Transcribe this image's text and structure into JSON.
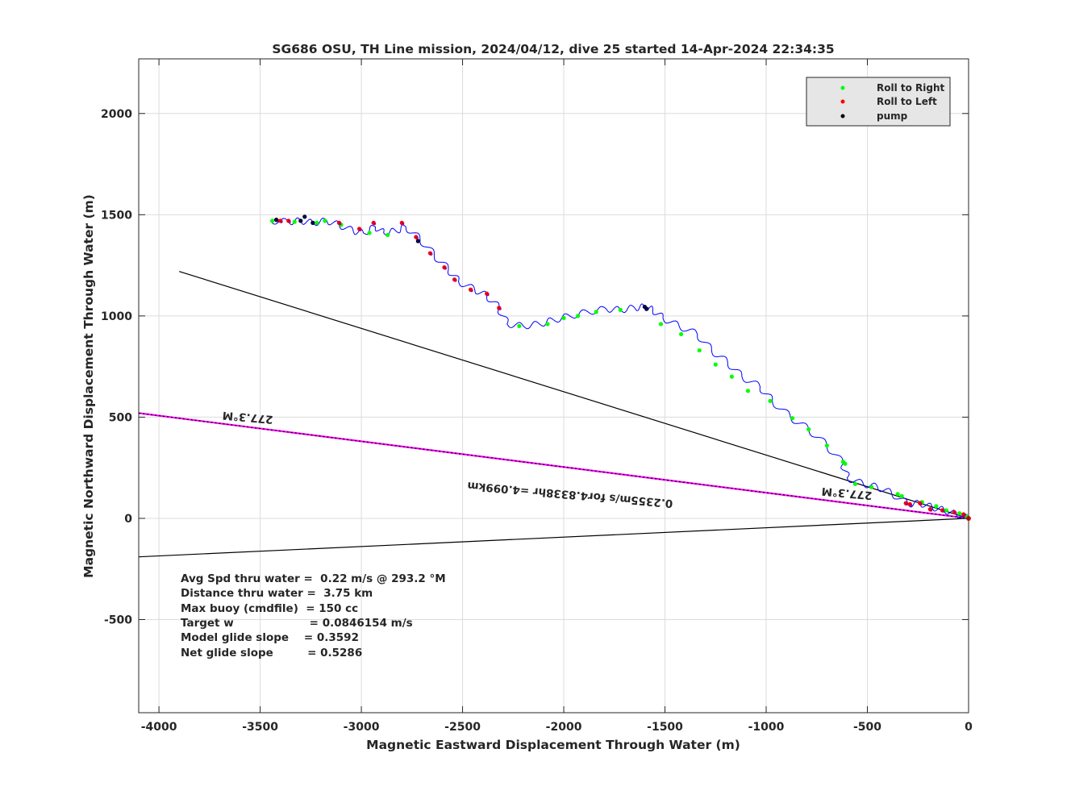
{
  "chart_data": {
    "type": "line",
    "title": "SG686 OSU, TH Line mission, 2024/04/12, dive 25 started 14-Apr-2024 22:34:35",
    "xlabel": "Magnetic Eastward Displacement Through Water (m)",
    "ylabel": "Magnetic Northward Displacement Through Water (m)",
    "xlim": [
      -4100,
      0
    ],
    "ylim": [
      -960,
      2270
    ],
    "xticks": [
      -4000,
      -3500,
      -3000,
      -2500,
      -2000,
      -1500,
      -1000,
      -500,
      0
    ],
    "yticks": [
      -500,
      0,
      500,
      1000,
      1500,
      2000
    ],
    "xtick_labels": [
      "-4000",
      "-3500",
      "-3000",
      "-2500",
      "-2000",
      "-1500",
      "-1000",
      "-500",
      "0"
    ],
    "ytick_labels": [
      "-500",
      "0",
      "500",
      "1000",
      "1500",
      "2000"
    ],
    "grid": true,
    "legend_position": "top-right",
    "legend": [
      {
        "label": "Roll to Right",
        "color": "#00ff00"
      },
      {
        "label": "Roll to Left",
        "color": "#ff0000"
      },
      {
        "label": "pump",
        "color": "#000000"
      }
    ],
    "track_color": "#0000ff",
    "track_anchors": [
      [
        0,
        0
      ],
      [
        -60,
        20
      ],
      [
        -120,
        40
      ],
      [
        -180,
        55
      ],
      [
        -240,
        75
      ],
      [
        -300,
        70
      ],
      [
        -380,
        125
      ],
      [
        -450,
        155
      ],
      [
        -520,
        170
      ],
      [
        -600,
        200
      ],
      [
        -620,
        270
      ],
      [
        -700,
        360
      ],
      [
        -790,
        440
      ],
      [
        -880,
        500
      ],
      [
        -970,
        580
      ],
      [
        -1030,
        650
      ],
      [
        -1120,
        700
      ],
      [
        -1190,
        770
      ],
      [
        -1270,
        830
      ],
      [
        -1340,
        910
      ],
      [
        -1430,
        950
      ],
      [
        -1510,
        990
      ],
      [
        -1560,
        1030
      ],
      [
        -1600,
        1045
      ],
      [
        -1650,
        1040
      ],
      [
        -1720,
        1030
      ],
      [
        -1790,
        1035
      ],
      [
        -1880,
        1020
      ],
      [
        -1970,
        1000
      ],
      [
        -2050,
        980
      ],
      [
        -2120,
        960
      ],
      [
        -2200,
        950
      ],
      [
        -2280,
        960
      ],
      [
        -2320,
        1040
      ],
      [
        -2380,
        1100
      ],
      [
        -2440,
        1130
      ],
      [
        -2520,
        1170
      ],
      [
        -2570,
        1230
      ],
      [
        -2640,
        1300
      ],
      [
        -2710,
        1380
      ],
      [
        -2780,
        1440
      ],
      [
        -2830,
        1420
      ],
      [
        -2890,
        1410
      ],
      [
        -2930,
        1440
      ],
      [
        -2990,
        1410
      ],
      [
        -3040,
        1420
      ],
      [
        -3110,
        1450
      ],
      [
        -3170,
        1470
      ],
      [
        -3240,
        1460
      ],
      [
        -3300,
        1470
      ],
      [
        -3360,
        1465
      ],
      [
        -3450,
        1470
      ]
    ],
    "roll_right_points": [
      [
        -10,
        10
      ],
      [
        -45,
        25
      ],
      [
        -110,
        40
      ],
      [
        -160,
        60
      ],
      [
        -230,
        80
      ],
      [
        -330,
        110
      ],
      [
        -350,
        120
      ],
      [
        -480,
        155
      ],
      [
        -560,
        170
      ],
      [
        -610,
        270
      ],
      [
        -620,
        280
      ],
      [
        -700,
        360
      ],
      [
        -790,
        440
      ],
      [
        -870,
        495
      ],
      [
        -980,
        580
      ],
      [
        -1090,
        630
      ],
      [
        -1170,
        700
      ],
      [
        -1250,
        760
      ],
      [
        -1330,
        830
      ],
      [
        -1420,
        910
      ],
      [
        -1520,
        960
      ],
      [
        -1720,
        1030
      ],
      [
        -1840,
        1020
      ],
      [
        -1930,
        1000
      ],
      [
        -2000,
        990
      ],
      [
        -2080,
        960
      ],
      [
        -2220,
        950
      ],
      [
        -2870,
        1400
      ],
      [
        -2960,
        1410
      ],
      [
        -3100,
        1450
      ],
      [
        -3180,
        1470
      ],
      [
        -3220,
        1460
      ],
      [
        -3330,
        1465
      ],
      [
        -3440,
        1470
      ]
    ],
    "roll_left_points": [
      [
        -25,
        20
      ],
      [
        -70,
        30
      ],
      [
        -130,
        40
      ],
      [
        -190,
        45
      ],
      [
        -240,
        75
      ],
      [
        -290,
        70
      ],
      [
        -310,
        75
      ],
      [
        -2320,
        1040
      ],
      [
        -2380,
        1110
      ],
      [
        -2460,
        1130
      ],
      [
        -2540,
        1180
      ],
      [
        -2590,
        1240
      ],
      [
        -2660,
        1310
      ],
      [
        -2730,
        1390
      ],
      [
        -2800,
        1460
      ],
      [
        -2940,
        1460
      ],
      [
        -3010,
        1430
      ],
      [
        -3110,
        1460
      ],
      [
        -3360,
        1470
      ],
      [
        -3400,
        1470
      ],
      [
        -3420,
        1475
      ]
    ],
    "pump_points": [
      [
        -1600,
        1045
      ],
      [
        -1590,
        1035
      ],
      [
        -2720,
        1370
      ],
      [
        -3240,
        1460
      ],
      [
        -3280,
        1490
      ],
      [
        -3300,
        1470
      ],
      [
        -3420,
        1475
      ]
    ],
    "reference_lines": [
      {
        "color": "#000000",
        "from": [
          0,
          0
        ],
        "to": [
          -4100,
          -190
        ]
      },
      {
        "color": "#000000",
        "from": [
          0,
          0
        ],
        "to": [
          -3900,
          1220
        ]
      },
      {
        "color": "#ff00ff",
        "from": [
          0,
          0
        ],
        "to": [
          -4100,
          520
        ]
      },
      {
        "color": "#000000",
        "from": [
          0,
          0
        ],
        "to": [
          -4100,
          520
        ]
      }
    ],
    "annotations": [
      {
        "text": "277.3°M",
        "x": -3435,
        "y": 505,
        "rotation": 185
      },
      {
        "text": "277.3°M",
        "x": -475,
        "y": 130,
        "rotation": 185
      },
      {
        "text": "0.2355m/s for4.8338hr =4.099km",
        "x": -1460,
        "y": 90,
        "rotation": 185
      }
    ],
    "stats": [
      "Avg Spd thru water =  0.22 m/s @ 293.2 °M",
      "Distance thru water =  3.75 km",
      "Max buoy (cmdfile)  = 150 cc",
      "Target w                    = 0.0846154 m/s",
      "Model glide slope    = 0.3592",
      "Net glide slope         = 0.5286"
    ]
  }
}
